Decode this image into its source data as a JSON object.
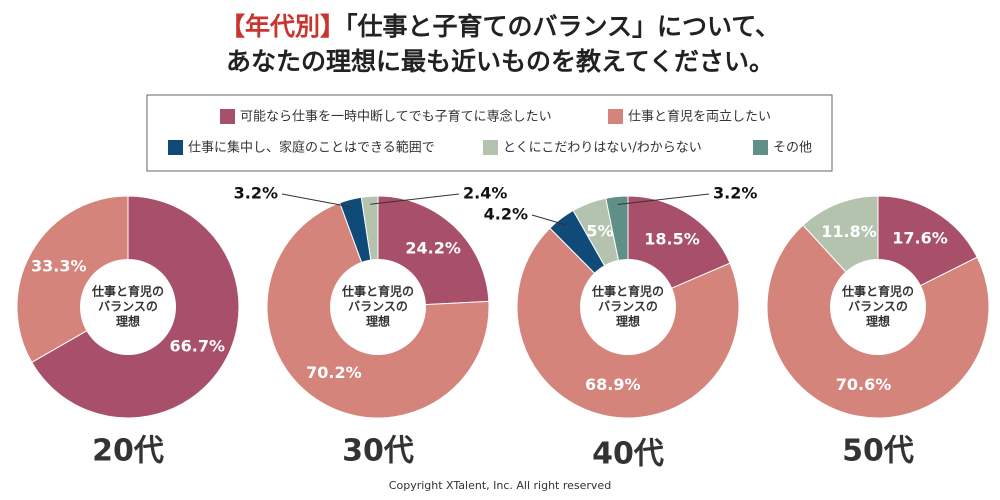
{
  "title": {
    "tag": "【年代別】",
    "line1": "「仕事と子育てのバランス」について、",
    "line2": "あなたの理想に最も近いものを教えてください。"
  },
  "legend": [
    {
      "name": "可能なら仕事を一時中断してでも子育てに専念したい",
      "color": "#a84f6a"
    },
    {
      "name": "仕事と育児を両立したい",
      "color": "#d4847a"
    },
    {
      "name": "仕事に集中し、家庭のことはできる範囲で",
      "color": "#0f4a78"
    },
    {
      "name": "とくにこだわりはない/わからない",
      "color": "#b4c3ae"
    },
    {
      "name": "その他",
      "color": "#5f8f87"
    }
  ],
  "chart_data": [
    {
      "type": "pie",
      "label": "20代",
      "center_label": [
        "仕事と育児の",
        "バランスの",
        "理想"
      ],
      "values": [
        66.7,
        33.3,
        null,
        null,
        null
      ],
      "value_labels": [
        "66.7%",
        "33.3%",
        null,
        null,
        null
      ]
    },
    {
      "type": "pie",
      "label": "30代",
      "center_label": [
        "仕事と育児の",
        "バランスの",
        "理想"
      ],
      "values": [
        24.2,
        70.2,
        3.2,
        2.4,
        null
      ],
      "value_labels": [
        "24.2%",
        "70.2%",
        "3.2%",
        "2.4%",
        null
      ]
    },
    {
      "type": "pie",
      "label": "40代",
      "center_label": [
        "仕事と育児の",
        "バランスの",
        "理想"
      ],
      "values": [
        18.5,
        68.9,
        4.2,
        5,
        3.2
      ],
      "value_labels": [
        "18.5%",
        "68.9%",
        "4.2%",
        "5%",
        "3.2%"
      ]
    },
    {
      "type": "pie",
      "label": "50代",
      "center_label": [
        "仕事と育児の",
        "バランスの",
        "理想"
      ],
      "values": [
        17.6,
        70.6,
        null,
        11.8,
        null
      ],
      "value_labels": [
        "17.6%",
        "70.6%",
        null,
        "11.8%",
        null
      ]
    }
  ],
  "footer": "Copyright XTalent, Inc. All right reserved"
}
